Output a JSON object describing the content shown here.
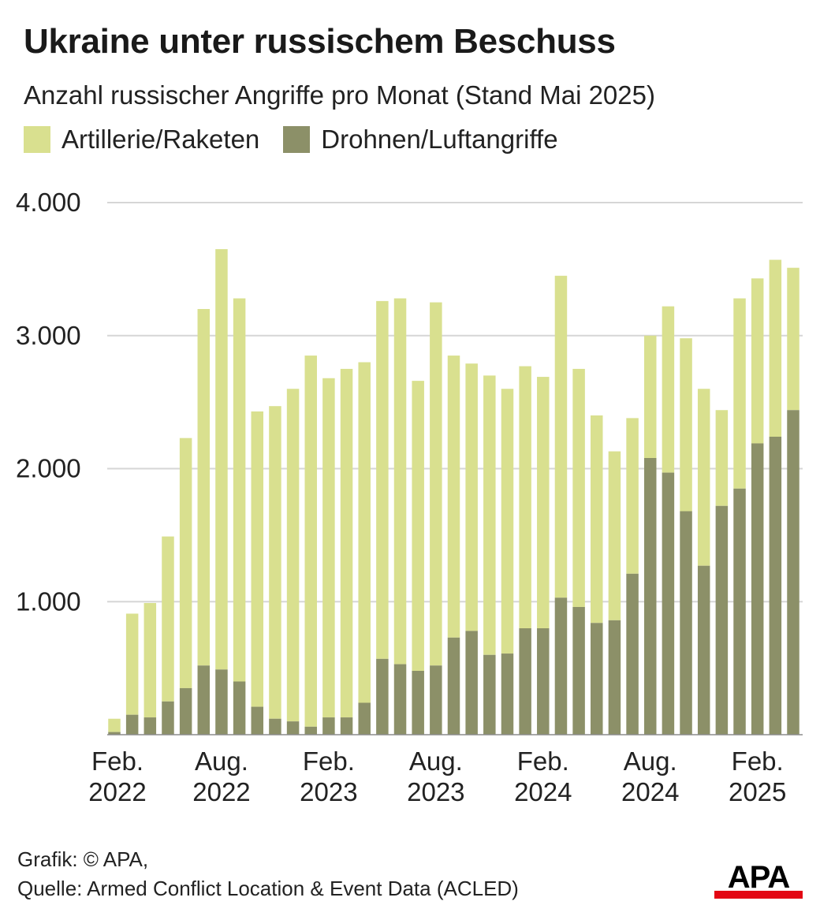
{
  "header": {
    "title": "Ukraine unter russischem Beschuss",
    "subtitle": "Anzahl russischer Angriffe pro Monat (Stand Mai 2025)"
  },
  "legend": [
    {
      "label": "Artillerie/Raketen",
      "color": "#d9e08f"
    },
    {
      "label": "Drohnen/Luftangriffe",
      "color": "#8c9068"
    }
  ],
  "footer": {
    "credit": "Grafik: © APA,",
    "source": "Quelle: Armed Conflict Location & Event Data (ACLED)"
  },
  "logo": {
    "text": "APA",
    "color": "#e30613"
  },
  "chart_data": {
    "type": "bar",
    "stacked": true,
    "ylim": [
      0,
      4000
    ],
    "yticks": [
      1000,
      2000,
      3000,
      4000
    ],
    "ytick_labels": [
      "1.000",
      "2.000",
      "3.000",
      "4.000"
    ],
    "grid": true,
    "categories": [
      "2022-02",
      "2022-03",
      "2022-04",
      "2022-05",
      "2022-06",
      "2022-07",
      "2022-08",
      "2022-09",
      "2022-10",
      "2022-11",
      "2022-12",
      "2023-01",
      "2023-02",
      "2023-03",
      "2023-04",
      "2023-05",
      "2023-06",
      "2023-07",
      "2023-08",
      "2023-09",
      "2023-10",
      "2023-11",
      "2023-12",
      "2024-01",
      "2024-02",
      "2024-03",
      "2024-04",
      "2024-05",
      "2024-06",
      "2024-07",
      "2024-08",
      "2024-09",
      "2024-10",
      "2024-11",
      "2024-12",
      "2025-01",
      "2025-02",
      "2025-03",
      "2025-04"
    ],
    "xtick_labels": [
      {
        "category": "2022-02",
        "line1": "Feb.",
        "line2": "2022"
      },
      {
        "category": "2022-08",
        "line1": "Aug.",
        "line2": "2022"
      },
      {
        "category": "2023-02",
        "line1": "Feb.",
        "line2": "2023"
      },
      {
        "category": "2023-08",
        "line1": "Aug.",
        "line2": "2023"
      },
      {
        "category": "2024-02",
        "line1": "Feb.",
        "line2": "2024"
      },
      {
        "category": "2024-08",
        "line1": "Aug.",
        "line2": "2024"
      },
      {
        "category": "2025-02",
        "line1": "Feb.",
        "line2": "2025"
      }
    ],
    "series": [
      {
        "name": "Drohnen/Luftangriffe",
        "color": "#8c9068",
        "values": [
          20,
          150,
          130,
          250,
          350,
          520,
          490,
          400,
          210,
          120,
          100,
          60,
          130,
          130,
          240,
          570,
          530,
          480,
          520,
          730,
          780,
          600,
          610,
          800,
          800,
          1030,
          960,
          840,
          860,
          1210,
          2080,
          1970,
          1680,
          1270,
          1720,
          1850,
          2190,
          2240,
          2440
        ]
      },
      {
        "name": "Artillerie/Raketen",
        "color": "#d9e08f",
        "values": [
          100,
          760,
          860,
          1240,
          1880,
          2680,
          3160,
          2880,
          2220,
          2350,
          2500,
          2790,
          2550,
          2620,
          2560,
          2690,
          2750,
          2180,
          2730,
          2120,
          2010,
          2100,
          1990,
          1970,
          1890,
          2420,
          1790,
          1560,
          1270,
          1170,
          920,
          1250,
          1300,
          1330,
          720,
          1430,
          1240,
          1330,
          1070
        ]
      }
    ]
  }
}
